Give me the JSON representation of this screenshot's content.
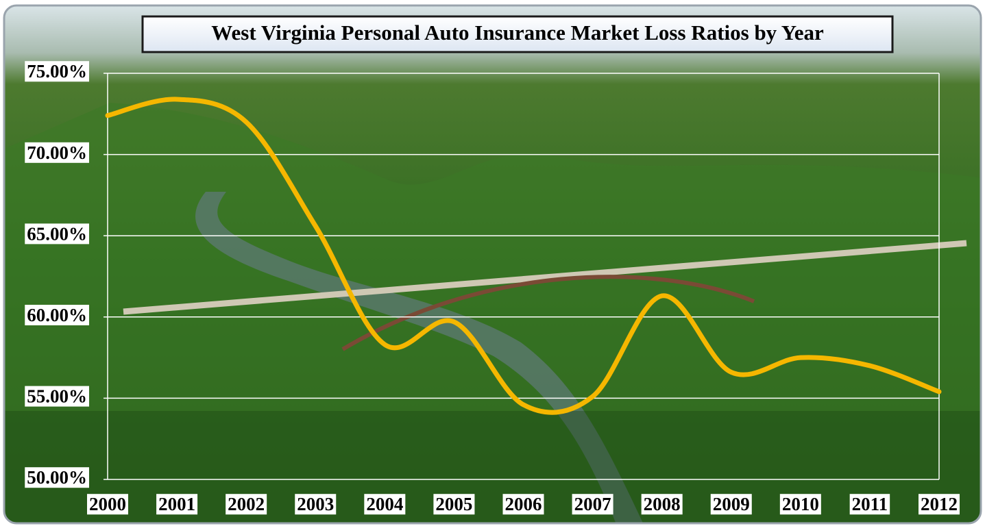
{
  "chart_data": {
    "type": "line",
    "title": "West Virginia Personal Auto Insurance Market Loss Ratios by Year",
    "categories": [
      "2000",
      "2001",
      "2002",
      "2003",
      "2004",
      "2005",
      "2006",
      "2007",
      "2008",
      "2009",
      "2010",
      "2011",
      "2012"
    ],
    "series": [
      {
        "color": "#f5b700",
        "values": [
          72.4,
          73.4,
          72.0,
          65.6,
          58.3,
          59.7,
          54.6,
          55.1,
          61.3,
          56.6,
          57.5,
          57.0,
          55.4
        ]
      }
    ],
    "ylim": [
      50,
      75
    ],
    "yticks": [
      {
        "value": 50,
        "label": "50.00%"
      },
      {
        "value": 55,
        "label": "55.00%"
      },
      {
        "value": 60,
        "label": "60.00%"
      },
      {
        "value": 65,
        "label": "65.00%"
      },
      {
        "value": 70,
        "label": "70.00%"
      },
      {
        "value": 75,
        "label": "75.00%"
      }
    ],
    "grid": true,
    "smooth": true
  }
}
